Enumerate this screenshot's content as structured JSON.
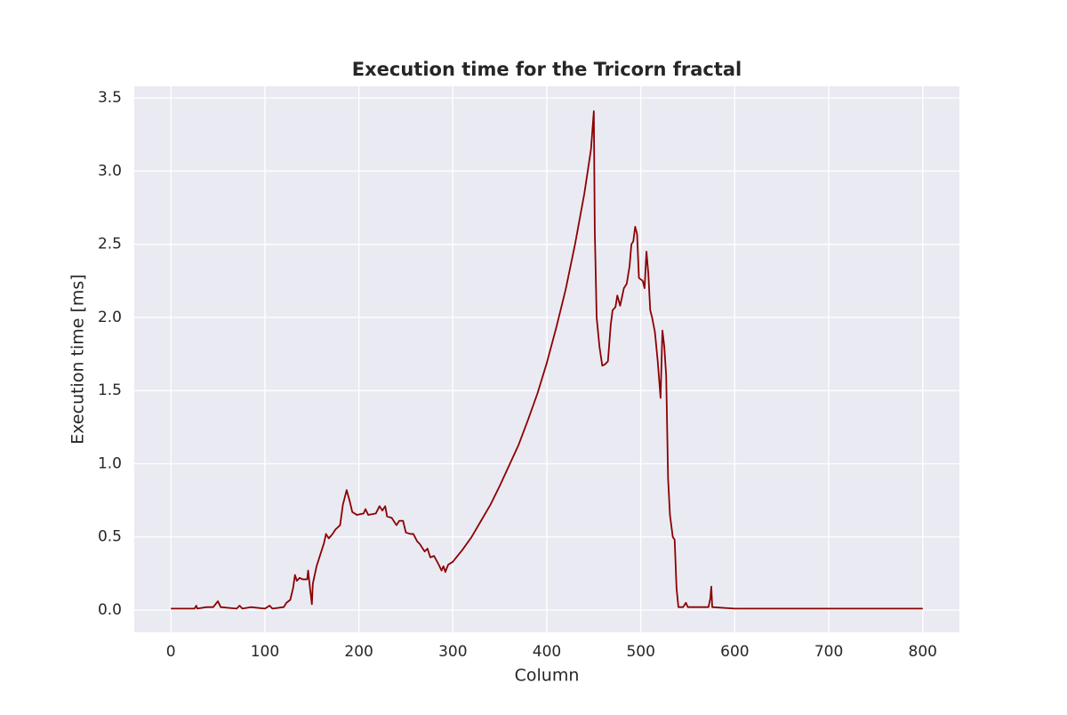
{
  "chart_data": {
    "type": "line",
    "title": "Execution time for the Tricorn fractal",
    "x_label": "Column",
    "y_label": "Execution time [ms]",
    "x": [
      0,
      25,
      27,
      28,
      38,
      45,
      50,
      53,
      70,
      73,
      76,
      85,
      100,
      105,
      108,
      120,
      123,
      127,
      130,
      132,
      134,
      137,
      140,
      145,
      146,
      148,
      150,
      151,
      155,
      160,
      163,
      165,
      168,
      172,
      175,
      180,
      183,
      187,
      190,
      193,
      198,
      205,
      207,
      210,
      218,
      222,
      225,
      228,
      230,
      235,
      240,
      243,
      247,
      250,
      255,
      258,
      262,
      265,
      270,
      273,
      276,
      280,
      285,
      288,
      290,
      292,
      295,
      300,
      305,
      310,
      320,
      330,
      340,
      350,
      360,
      370,
      380,
      390,
      400,
      410,
      420,
      430,
      440,
      447,
      450,
      451,
      453,
      456,
      459,
      462,
      465,
      468,
      470,
      473,
      475,
      478,
      482,
      485,
      488,
      490,
      492,
      494,
      496,
      498,
      502,
      504,
      506,
      508,
      510,
      512,
      515,
      518,
      521,
      523,
      525,
      527,
      529,
      531,
      534,
      536,
      538,
      540,
      545,
      548,
      550,
      572,
      574,
      575,
      576,
      600,
      700,
      800
    ],
    "series": [
      {
        "name": "Execution time",
        "color": "#8b0000",
        "values": [
          0.01,
          0.01,
          0.03,
          0.01,
          0.02,
          0.02,
          0.06,
          0.02,
          0.01,
          0.03,
          0.01,
          0.02,
          0.01,
          0.03,
          0.01,
          0.02,
          0.05,
          0.07,
          0.15,
          0.24,
          0.2,
          0.22,
          0.21,
          0.21,
          0.27,
          0.15,
          0.04,
          0.18,
          0.3,
          0.4,
          0.46,
          0.52,
          0.49,
          0.52,
          0.55,
          0.58,
          0.72,
          0.82,
          0.75,
          0.67,
          0.65,
          0.66,
          0.69,
          0.65,
          0.66,
          0.71,
          0.68,
          0.71,
          0.64,
          0.63,
          0.58,
          0.61,
          0.61,
          0.53,
          0.52,
          0.52,
          0.47,
          0.45,
          0.4,
          0.42,
          0.36,
          0.37,
          0.31,
          0.27,
          0.3,
          0.26,
          0.31,
          0.33,
          0.37,
          0.41,
          0.5,
          0.61,
          0.72,
          0.85,
          0.99,
          1.13,
          1.3,
          1.48,
          1.69,
          1.93,
          2.19,
          2.5,
          2.85,
          3.15,
          3.41,
          2.6,
          2.0,
          1.8,
          1.67,
          1.68,
          1.7,
          1.95,
          2.05,
          2.07,
          2.15,
          2.08,
          2.2,
          2.23,
          2.35,
          2.5,
          2.52,
          2.62,
          2.57,
          2.27,
          2.25,
          2.2,
          2.45,
          2.3,
          2.05,
          2.0,
          1.9,
          1.7,
          1.45,
          1.91,
          1.8,
          1.6,
          0.9,
          0.65,
          0.5,
          0.48,
          0.15,
          0.02,
          0.02,
          0.05,
          0.02,
          0.02,
          0.08,
          0.16,
          0.02,
          0.01,
          0.01,
          0.01
        ]
      }
    ],
    "xlim": [
      -39,
      839
    ],
    "ylim": [
      -0.152,
      3.58
    ],
    "xticks": [
      0,
      100,
      200,
      300,
      400,
      500,
      600,
      700,
      800
    ],
    "yticks": [
      {
        "value": 0,
        "label": "0.0"
      },
      0.5,
      {
        "value": 1,
        "label": "1.0"
      },
      1.5,
      {
        "value": 2,
        "label": "2.0"
      },
      2.5,
      {
        "value": 3,
        "label": "3.0"
      },
      3.5
    ],
    "grid": true
  }
}
